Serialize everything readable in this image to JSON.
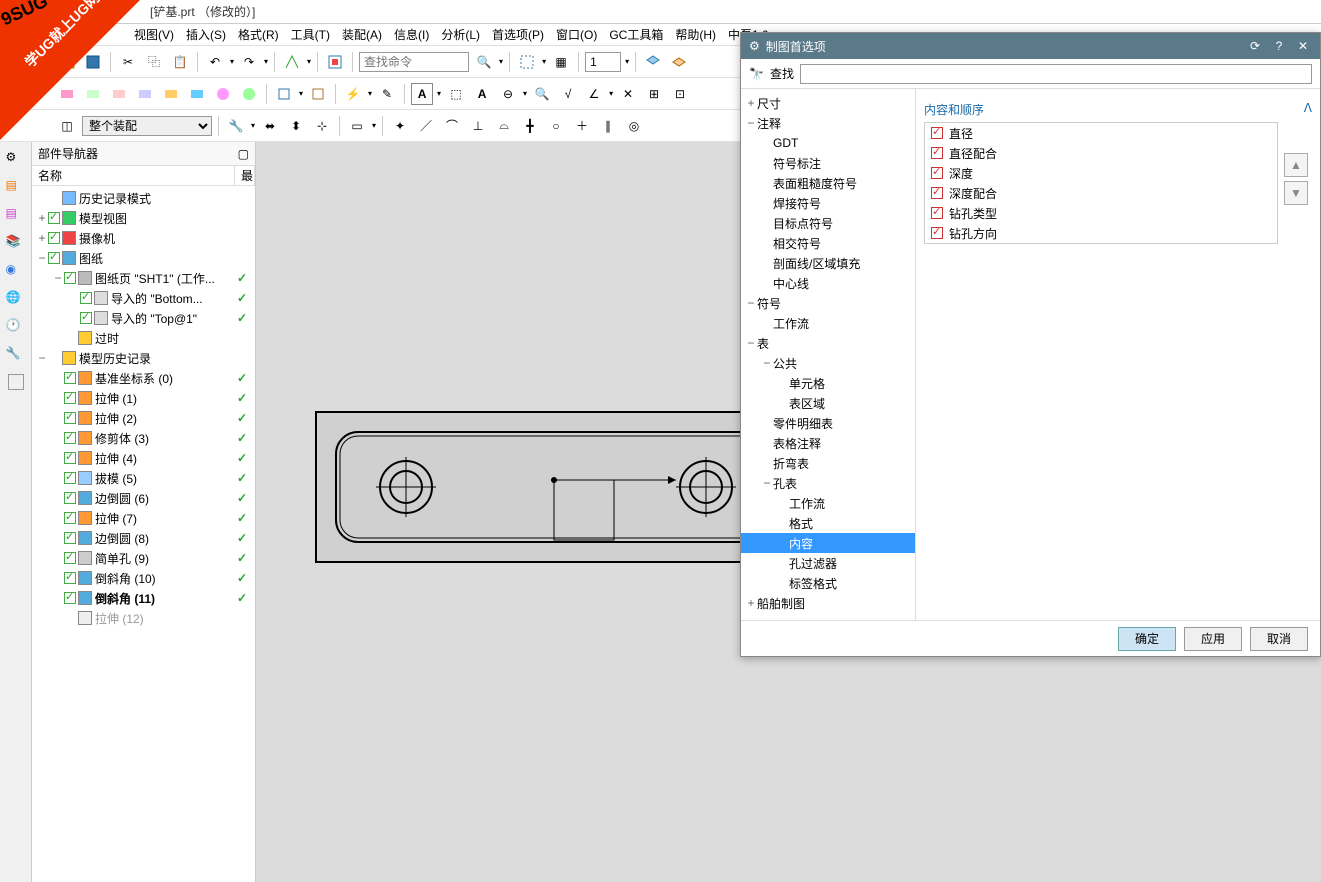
{
  "title": "[铲基.prt （修改的）]",
  "menu": [
    "视图(V)",
    "插入(S)",
    "格式(R)",
    "工具(T)",
    "装配(A)",
    "信息(I)",
    "分析(L)",
    "首选项(P)",
    "窗口(O)",
    "GC工具箱",
    "帮助(H)",
    "中磊1.0"
  ],
  "search_placeholder": "查找命令",
  "scale_value": "1",
  "assembly_scope": "整个装配",
  "nav": {
    "title": "部件导航器",
    "col_name": "名称",
    "col_state": "最",
    "tree": [
      {
        "ind": 0,
        "exp": "",
        "chk": false,
        "ico": "#7bf",
        "lbl": "历史记录模式",
        "st": ""
      },
      {
        "ind": 0,
        "exp": "+",
        "chk": true,
        "ico": "#3c6",
        "lbl": "模型视图",
        "st": ""
      },
      {
        "ind": 0,
        "exp": "+",
        "chk": true,
        "ico": "#e44",
        "lbl": "摄像机",
        "st": ""
      },
      {
        "ind": 0,
        "exp": "−",
        "chk": true,
        "ico": "#5ad",
        "lbl": "图纸",
        "st": ""
      },
      {
        "ind": 1,
        "exp": "−",
        "chk": true,
        "ico": "#bbb",
        "lbl": "图纸页 \"SHT1\" (工作...",
        "st": "✓"
      },
      {
        "ind": 2,
        "exp": "",
        "chk": true,
        "ico": "#ddd",
        "lbl": "导入的 \"Bottom...",
        "st": "✓"
      },
      {
        "ind": 2,
        "exp": "",
        "chk": true,
        "ico": "#ddd",
        "lbl": "导入的 \"Top@1\"",
        "st": "✓"
      },
      {
        "ind": 1,
        "exp": "",
        "chk": false,
        "ico": "#fc3",
        "lbl": "过时",
        "st": ""
      },
      {
        "ind": 0,
        "exp": "−",
        "chk": false,
        "ico": "#fc3",
        "lbl": "模型历史记录",
        "st": ""
      },
      {
        "ind": 1,
        "exp": "",
        "chk": true,
        "ico": "#f93",
        "lbl": "基准坐标系 (0)",
        "st": "✓"
      },
      {
        "ind": 1,
        "exp": "",
        "chk": true,
        "ico": "#f93",
        "lbl": "拉伸 (1)",
        "st": "✓"
      },
      {
        "ind": 1,
        "exp": "",
        "chk": true,
        "ico": "#f93",
        "lbl": "拉伸 (2)",
        "st": "✓"
      },
      {
        "ind": 1,
        "exp": "",
        "chk": true,
        "ico": "#f93",
        "lbl": "修剪体 (3)",
        "st": "✓"
      },
      {
        "ind": 1,
        "exp": "",
        "chk": true,
        "ico": "#f93",
        "lbl": "拉伸 (4)",
        "st": "✓"
      },
      {
        "ind": 1,
        "exp": "",
        "chk": true,
        "ico": "#9cf",
        "lbl": "拔模 (5)",
        "st": "✓"
      },
      {
        "ind": 1,
        "exp": "",
        "chk": true,
        "ico": "#5ad",
        "lbl": "边倒圆 (6)",
        "st": "✓"
      },
      {
        "ind": 1,
        "exp": "",
        "chk": true,
        "ico": "#f93",
        "lbl": "拉伸 (7)",
        "st": "✓"
      },
      {
        "ind": 1,
        "exp": "",
        "chk": true,
        "ico": "#5ad",
        "lbl": "边倒圆 (8)",
        "st": "✓"
      },
      {
        "ind": 1,
        "exp": "",
        "chk": true,
        "ico": "#ccc",
        "lbl": "简单孔 (9)",
        "st": "✓"
      },
      {
        "ind": 1,
        "exp": "",
        "chk": true,
        "ico": "#5ad",
        "lbl": "倒斜角 (10)",
        "st": "✓"
      },
      {
        "ind": 1,
        "exp": "",
        "chk": true,
        "ico": "#5ad",
        "lbl": "倒斜角 (11)",
        "st": "✓",
        "bold": true
      },
      {
        "ind": 1,
        "exp": "",
        "chk": false,
        "ico": "#eee",
        "lbl": "拉伸 (12)",
        "st": "",
        "gray": true
      }
    ]
  },
  "prefs": {
    "title": "制图首选项",
    "search_label": "查找",
    "section_title": "内容和顺序",
    "tree": [
      {
        "ind": 0,
        "exp": "+",
        "lbl": "尺寸"
      },
      {
        "ind": 0,
        "exp": "−",
        "lbl": "注释"
      },
      {
        "ind": 1,
        "exp": "",
        "lbl": "GDT"
      },
      {
        "ind": 1,
        "exp": "",
        "lbl": "符号标注"
      },
      {
        "ind": 1,
        "exp": "",
        "lbl": "表面粗糙度符号"
      },
      {
        "ind": 1,
        "exp": "",
        "lbl": "焊接符号"
      },
      {
        "ind": 1,
        "exp": "",
        "lbl": "目标点符号"
      },
      {
        "ind": 1,
        "exp": "",
        "lbl": "相交符号"
      },
      {
        "ind": 1,
        "exp": "",
        "lbl": "剖面线/区域填充"
      },
      {
        "ind": 1,
        "exp": "",
        "lbl": "中心线"
      },
      {
        "ind": 0,
        "exp": "−",
        "lbl": "符号"
      },
      {
        "ind": 1,
        "exp": "",
        "lbl": "工作流"
      },
      {
        "ind": 0,
        "exp": "−",
        "lbl": "表"
      },
      {
        "ind": 1,
        "exp": "−",
        "lbl": "公共"
      },
      {
        "ind": 2,
        "exp": "",
        "lbl": "单元格"
      },
      {
        "ind": 2,
        "exp": "",
        "lbl": "表区域"
      },
      {
        "ind": 1,
        "exp": "",
        "lbl": "零件明细表"
      },
      {
        "ind": 1,
        "exp": "",
        "lbl": "表格注释"
      },
      {
        "ind": 1,
        "exp": "",
        "lbl": "折弯表"
      },
      {
        "ind": 1,
        "exp": "−",
        "lbl": "孔表"
      },
      {
        "ind": 2,
        "exp": "",
        "lbl": "工作流"
      },
      {
        "ind": 2,
        "exp": "",
        "lbl": "格式"
      },
      {
        "ind": 2,
        "exp": "",
        "lbl": "内容",
        "sel": true
      },
      {
        "ind": 2,
        "exp": "",
        "lbl": "孔过滤器"
      },
      {
        "ind": 2,
        "exp": "",
        "lbl": "标签格式"
      },
      {
        "ind": 0,
        "exp": "+",
        "lbl": "船舶制图"
      }
    ],
    "checks": [
      "直径",
      "直径配合",
      "深度",
      "深度配合",
      "钻孔类型",
      "钻孔方向"
    ],
    "btn_ok": "确定",
    "btn_apply": "应用",
    "btn_cancel": "取消"
  },
  "wm1": "学UG就上UG网",
  "wm2": "9SUG"
}
